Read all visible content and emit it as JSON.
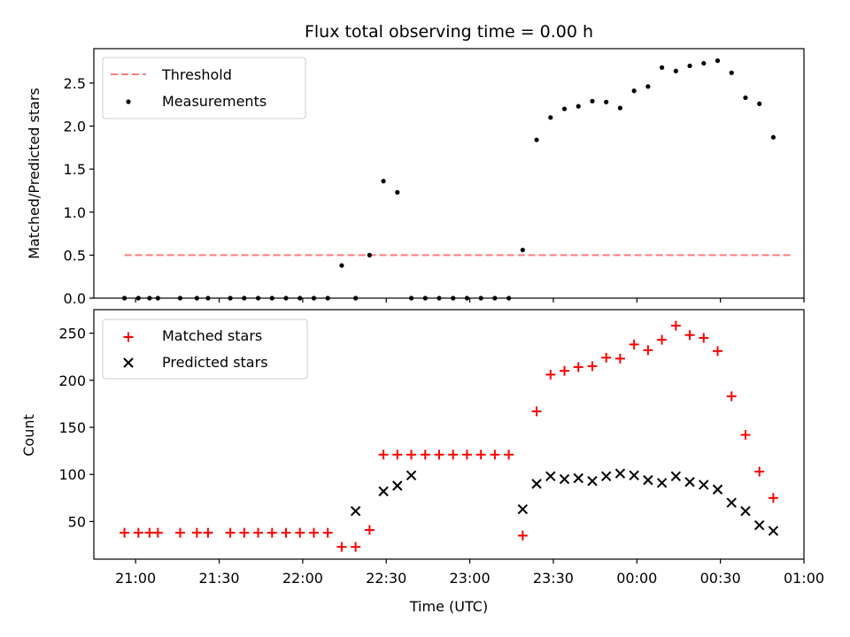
{
  "title": "Flux total observing time = 0.00 h",
  "xlabel": "Time (UTC)",
  "xticks": [
    "21:00",
    "21:30",
    "22:00",
    "22:30",
    "23:00",
    "23:30",
    "00:00",
    "00:30",
    "01:00"
  ],
  "colors": {
    "threshold": "#ff7b7b",
    "measurements": "#000000",
    "matched": "#ff0000",
    "predicted": "#000000"
  },
  "chart_data": [
    {
      "type": "scatter",
      "ylabel": "Matched/Predicted stars",
      "xlim": [
        "20:45",
        "01:00"
      ],
      "ylim": [
        0,
        2.9
      ],
      "yticks": [
        "0.0",
        "0.5",
        "1.0",
        "1.5",
        "2.0",
        "2.5"
      ],
      "ytick_values": [
        0,
        0.5,
        1.0,
        1.5,
        2.0,
        2.5
      ],
      "legend": {
        "position": "top-left",
        "entries": [
          "Threshold",
          "Measurements"
        ]
      },
      "threshold": {
        "name": "Threshold",
        "y": 0.5,
        "x_range": [
          "20:56",
          "00:56"
        ]
      },
      "series": [
        {
          "name": "Measurements",
          "marker": "dot",
          "x": [
            "20:56",
            "21:01",
            "21:05",
            "21:08",
            "21:16",
            "21:22",
            "21:26",
            "21:34",
            "21:39",
            "21:44",
            "21:49",
            "21:54",
            "21:59",
            "22:04",
            "22:09",
            "22:14",
            "22:19",
            "22:24",
            "22:29",
            "22:34",
            "22:39",
            "22:44",
            "22:49",
            "22:54",
            "22:59",
            "23:04",
            "23:09",
            "23:14",
            "23:19",
            "23:24",
            "23:29",
            "23:34",
            "23:39",
            "23:44",
            "23:49",
            "23:54",
            "23:59",
            "00:04",
            "00:09",
            "00:14",
            "00:19",
            "00:24",
            "00:29",
            "00:34",
            "00:39",
            "00:44",
            "00:49"
          ],
          "y": [
            0,
            0,
            0,
            0,
            0,
            0,
            0,
            0,
            0,
            0,
            0,
            0,
            0,
            0,
            0,
            0.38,
            0,
            0.5,
            1.36,
            1.23,
            0,
            0,
            0,
            0,
            0,
            0,
            0,
            0,
            0.56,
            1.84,
            2.1,
            2.2,
            2.23,
            2.29,
            2.28,
            2.21,
            2.41,
            2.46,
            2.68,
            2.64,
            2.7,
            2.73,
            2.76,
            2.62,
            2.33,
            2.26,
            1.87
          ]
        }
      ]
    },
    {
      "type": "scatter",
      "ylabel": "Count",
      "xlim": [
        "20:45",
        "01:00"
      ],
      "ylim": [
        10,
        275
      ],
      "yticks": [
        "50",
        "100",
        "150",
        "200",
        "250"
      ],
      "ytick_values": [
        50,
        100,
        150,
        200,
        250
      ],
      "legend": {
        "position": "top-left",
        "entries": [
          "Matched stars",
          "Predicted stars"
        ]
      },
      "series": [
        {
          "name": "Matched stars",
          "marker": "plus",
          "x": [
            "20:56",
            "21:01",
            "21:05",
            "21:08",
            "21:16",
            "21:22",
            "21:26",
            "21:34",
            "21:39",
            "21:44",
            "21:49",
            "21:54",
            "21:59",
            "22:04",
            "22:09",
            "22:14",
            "22:19",
            "22:24",
            "22:29",
            "22:34",
            "22:39",
            "22:44",
            "22:49",
            "22:54",
            "22:59",
            "23:04",
            "23:09",
            "23:14",
            "23:19",
            "23:24",
            "23:29",
            "23:34",
            "23:39",
            "23:44",
            "23:49",
            "23:54",
            "23:59",
            "00:04",
            "00:09",
            "00:14",
            "00:19",
            "00:24",
            "00:29",
            "00:34",
            "00:39",
            "00:44",
            "00:49"
          ],
          "y": [
            38,
            38,
            38,
            38,
            38,
            38,
            38,
            38,
            38,
            38,
            38,
            38,
            38,
            38,
            38,
            23,
            23,
            41,
            121,
            121,
            121,
            121,
            121,
            121,
            121,
            121,
            121,
            121,
            35,
            167,
            206,
            210,
            214,
            215,
            224,
            223,
            238,
            232,
            243,
            258,
            248,
            245,
            231,
            183,
            142,
            103,
            75
          ]
        },
        {
          "name": "Predicted stars",
          "marker": "x",
          "x": [
            "22:19",
            "22:29",
            "22:34",
            "22:39",
            "23:19",
            "23:24",
            "23:29",
            "23:34",
            "23:39",
            "23:44",
            "23:49",
            "23:54",
            "23:59",
            "00:04",
            "00:09",
            "00:14",
            "00:19",
            "00:24",
            "00:29",
            "00:34",
            "00:39",
            "00:44",
            "00:49"
          ],
          "y": [
            61,
            82,
            88,
            99,
            63,
            90,
            98,
            95,
            96,
            93,
            98,
            101,
            99,
            94,
            91,
            98,
            92,
            89,
            84,
            70,
            61,
            46,
            40
          ]
        }
      ]
    }
  ]
}
